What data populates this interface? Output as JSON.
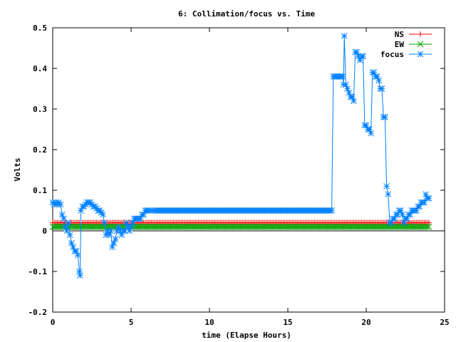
{
  "chart_data": {
    "type": "line",
    "title": "6: Collimation/focus vs. Time",
    "xlabel": "time (Elapse Hours)",
    "ylabel": "Volts",
    "xlim": [
      0,
      25
    ],
    "ylim": [
      -0.2,
      0.5
    ],
    "xticks": [
      0,
      5,
      10,
      15,
      20,
      25
    ],
    "xtick_labels": [
      "0",
      "5",
      "10",
      "15",
      "20",
      "25"
    ],
    "yticks": [
      -0.2,
      -0.1,
      0,
      0.1,
      0.2,
      0.3,
      0.4,
      0.5
    ],
    "ytick_labels": [
      "-0.2",
      "-0.1",
      "0",
      "0.1",
      "0.2",
      "0.3",
      "0.4",
      "0.5"
    ],
    "grid": false,
    "legend_position": "top-right",
    "series": [
      {
        "name": "NS",
        "color": "#ff0000",
        "marker": "plus",
        "constant": 0.02,
        "x_start": 0,
        "x_end": 24,
        "step": 0.1
      },
      {
        "name": "EW",
        "color": "#00a000",
        "marker": "cross",
        "constant": 0.01,
        "x_start": 0,
        "x_end": 24,
        "step": 0.1
      },
      {
        "name": "focus",
        "color": "#0080ff",
        "marker": "star",
        "points": [
          [
            0.0,
            0.07
          ],
          [
            0.1,
            0.065
          ],
          [
            0.2,
            0.07
          ],
          [
            0.3,
            0.065
          ],
          [
            0.4,
            0.07
          ],
          [
            0.5,
            0.065
          ],
          [
            0.6,
            0.04
          ],
          [
            0.7,
            0.03
          ],
          [
            0.8,
            0.01
          ],
          [
            0.9,
            0.0
          ],
          [
            1.0,
            0.02
          ],
          [
            1.1,
            -0.01
          ],
          [
            1.2,
            -0.03
          ],
          [
            1.3,
            -0.04
          ],
          [
            1.4,
            -0.05
          ],
          [
            1.5,
            -0.05
          ],
          [
            1.6,
            -0.06
          ],
          [
            1.7,
            -0.1
          ],
          [
            1.75,
            -0.11
          ],
          [
            1.8,
            0.05
          ],
          [
            1.9,
            0.06
          ],
          [
            2.0,
            0.06
          ],
          [
            2.1,
            0.065
          ],
          [
            2.2,
            0.07
          ],
          [
            2.3,
            0.07
          ],
          [
            2.4,
            0.07
          ],
          [
            2.5,
            0.065
          ],
          [
            2.6,
            0.06
          ],
          [
            2.7,
            0.06
          ],
          [
            2.8,
            0.055
          ],
          [
            2.9,
            0.05
          ],
          [
            3.0,
            0.05
          ],
          [
            3.1,
            0.045
          ],
          [
            3.2,
            0.04
          ],
          [
            3.3,
            0.02
          ],
          [
            3.4,
            -0.01
          ],
          [
            3.5,
            0.0
          ],
          [
            3.6,
            -0.01
          ],
          [
            3.7,
            0.0
          ],
          [
            3.8,
            -0.04
          ],
          [
            3.9,
            -0.03
          ],
          [
            4.0,
            -0.02
          ],
          [
            4.1,
            0.0
          ],
          [
            4.2,
            0.01
          ],
          [
            4.3,
            0.0
          ],
          [
            4.4,
            -0.01
          ],
          [
            4.5,
            0.0
          ],
          [
            4.6,
            0.0
          ],
          [
            4.7,
            0.02
          ],
          [
            4.8,
            0.01
          ],
          [
            4.9,
            0.0
          ],
          [
            5.0,
            0.01
          ],
          [
            5.1,
            0.02
          ],
          [
            5.2,
            0.03
          ],
          [
            5.3,
            0.03
          ],
          [
            5.4,
            0.03
          ],
          [
            5.5,
            0.03
          ],
          [
            5.6,
            0.03
          ],
          [
            5.7,
            0.04
          ],
          [
            5.8,
            0.04
          ],
          [
            5.9,
            0.05
          ],
          [
            6.0,
            0.05
          ],
          [
            6.2,
            0.05
          ],
          [
            6.5,
            0.05
          ],
          [
            7.0,
            0.05
          ],
          [
            8.0,
            0.05
          ],
          [
            9.0,
            0.05
          ],
          [
            10.0,
            0.05
          ],
          [
            11.0,
            0.05
          ],
          [
            12.0,
            0.05
          ],
          [
            13.0,
            0.05
          ],
          [
            14.0,
            0.05
          ],
          [
            15.0,
            0.05
          ],
          [
            16.0,
            0.05
          ],
          [
            17.0,
            0.05
          ],
          [
            17.5,
            0.05
          ],
          [
            17.8,
            0.05
          ],
          [
            17.9,
            0.38
          ],
          [
            18.0,
            0.38
          ],
          [
            18.1,
            0.38
          ],
          [
            18.2,
            0.38
          ],
          [
            18.3,
            0.38
          ],
          [
            18.4,
            0.38
          ],
          [
            18.5,
            0.38
          ],
          [
            18.55,
            0.36
          ],
          [
            18.6,
            0.48
          ],
          [
            18.7,
            0.36
          ],
          [
            18.8,
            0.35
          ],
          [
            18.9,
            0.34
          ],
          [
            19.0,
            0.33
          ],
          [
            19.1,
            0.33
          ],
          [
            19.2,
            0.32
          ],
          [
            19.3,
            0.44
          ],
          [
            19.4,
            0.44
          ],
          [
            19.5,
            0.43
          ],
          [
            19.6,
            0.42
          ],
          [
            19.7,
            0.43
          ],
          [
            19.8,
            0.43
          ],
          [
            19.9,
            0.26
          ],
          [
            20.0,
            0.26
          ],
          [
            20.1,
            0.25
          ],
          [
            20.2,
            0.25
          ],
          [
            20.3,
            0.24
          ],
          [
            20.4,
            0.39
          ],
          [
            20.5,
            0.39
          ],
          [
            20.6,
            0.38
          ],
          [
            20.7,
            0.38
          ],
          [
            20.8,
            0.37
          ],
          [
            20.9,
            0.35
          ],
          [
            21.0,
            0.35
          ],
          [
            21.1,
            0.28
          ],
          [
            21.2,
            0.28
          ],
          [
            21.3,
            0.11
          ],
          [
            21.4,
            0.09
          ],
          [
            21.5,
            0.02
          ],
          [
            21.6,
            0.02
          ],
          [
            21.7,
            0.03
          ],
          [
            21.8,
            0.03
          ],
          [
            21.9,
            0.04
          ],
          [
            22.0,
            0.04
          ],
          [
            22.1,
            0.05
          ],
          [
            22.2,
            0.05
          ],
          [
            22.3,
            0.04
          ],
          [
            22.4,
            0.02
          ],
          [
            22.5,
            0.03
          ],
          [
            22.6,
            0.03
          ],
          [
            22.7,
            0.04
          ],
          [
            22.8,
            0.04
          ],
          [
            22.9,
            0.05
          ],
          [
            23.0,
            0.05
          ],
          [
            23.1,
            0.05
          ],
          [
            23.2,
            0.05
          ],
          [
            23.3,
            0.06
          ],
          [
            23.4,
            0.06
          ],
          [
            23.5,
            0.07
          ],
          [
            23.6,
            0.07
          ],
          [
            23.7,
            0.07
          ],
          [
            23.8,
            0.09
          ],
          [
            23.9,
            0.08
          ],
          [
            24.0,
            0.08
          ]
        ]
      }
    ]
  }
}
